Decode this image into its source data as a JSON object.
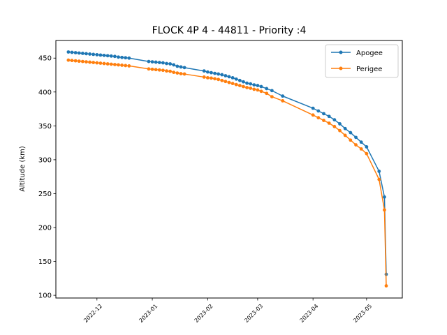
{
  "chart_data": {
    "type": "line",
    "title": "FLOCK 4P 4 - 44811 - Priority :4",
    "xlabel": "",
    "ylabel": "Altitude (km)",
    "ylim": [
      96,
      476
    ],
    "xlim": [
      "2022-11-08",
      "2023-05-21"
    ],
    "y_ticks": [
      100,
      150,
      200,
      250,
      300,
      350,
      400,
      450
    ],
    "x_ticks": [
      "2022-12",
      "2023-01",
      "2023-02",
      "2023-03",
      "2023-04",
      "2023-05"
    ],
    "grid": false,
    "legend_position": "top-right",
    "series": [
      {
        "name": "Apogee",
        "color": "#1f77b4",
        "x": [
          "2022-11-15",
          "2022-11-17",
          "2022-11-19",
          "2022-11-21",
          "2022-11-23",
          "2022-11-25",
          "2022-11-27",
          "2022-11-29",
          "2022-12-01",
          "2022-12-03",
          "2022-12-05",
          "2022-12-07",
          "2022-12-09",
          "2022-12-11",
          "2022-12-13",
          "2022-12-15",
          "2022-12-17",
          "2022-12-19",
          "2022-12-30",
          "2023-01-01",
          "2023-01-03",
          "2023-01-05",
          "2023-01-07",
          "2023-01-09",
          "2023-01-11",
          "2023-01-13",
          "2023-01-15",
          "2023-01-17",
          "2023-01-19",
          "2023-01-30",
          "2023-02-01",
          "2023-02-03",
          "2023-02-05",
          "2023-02-07",
          "2023-02-09",
          "2023-02-11",
          "2023-02-13",
          "2023-02-15",
          "2023-02-17",
          "2023-02-19",
          "2023-02-21",
          "2023-02-23",
          "2023-02-25",
          "2023-02-27",
          "2023-03-01",
          "2023-03-03",
          "2023-03-06",
          "2023-03-09",
          "2023-03-15",
          "2023-04-01",
          "2023-04-04",
          "2023-04-07",
          "2023-04-10",
          "2023-04-13",
          "2023-04-16",
          "2023-04-19",
          "2023-04-22",
          "2023-04-25",
          "2023-04-28",
          "2023-05-01",
          "2023-05-08",
          "2023-05-11",
          "2023-05-12"
        ],
        "y": [
          459,
          458.5,
          458,
          457.5,
          457,
          456.5,
          456,
          455.5,
          455,
          454.5,
          454,
          453.5,
          453,
          452.5,
          451.5,
          451,
          450.5,
          450,
          445,
          444.5,
          444,
          443.5,
          443,
          442,
          441.5,
          440,
          438,
          437,
          436,
          431,
          429.5,
          428.5,
          427.5,
          426.5,
          425.5,
          424,
          422.5,
          421,
          419,
          417,
          415,
          413,
          412,
          410.5,
          409.5,
          408,
          405,
          402,
          394,
          376,
          372,
          368,
          364,
          359,
          353,
          346,
          340,
          333,
          326,
          319,
          283,
          245,
          131
        ]
      },
      {
        "name": "Perigee",
        "color": "#ff7f0e",
        "x": [
          "2022-11-15",
          "2022-11-17",
          "2022-11-19",
          "2022-11-21",
          "2022-11-23",
          "2022-11-25",
          "2022-11-27",
          "2022-11-29",
          "2022-12-01",
          "2022-12-03",
          "2022-12-05",
          "2022-12-07",
          "2022-12-09",
          "2022-12-11",
          "2022-12-13",
          "2022-12-15",
          "2022-12-17",
          "2022-12-19",
          "2022-12-30",
          "2023-01-01",
          "2023-01-03",
          "2023-01-05",
          "2023-01-07",
          "2023-01-09",
          "2023-01-11",
          "2023-01-13",
          "2023-01-15",
          "2023-01-17",
          "2023-01-19",
          "2023-01-30",
          "2023-02-01",
          "2023-02-03",
          "2023-02-05",
          "2023-02-07",
          "2023-02-09",
          "2023-02-11",
          "2023-02-13",
          "2023-02-15",
          "2023-02-17",
          "2023-02-19",
          "2023-02-21",
          "2023-02-23",
          "2023-02-25",
          "2023-02-27",
          "2023-03-01",
          "2023-03-03",
          "2023-03-06",
          "2023-03-09",
          "2023-03-15",
          "2023-04-01",
          "2023-04-04",
          "2023-04-07",
          "2023-04-10",
          "2023-04-13",
          "2023-04-16",
          "2023-04-19",
          "2023-04-22",
          "2023-04-25",
          "2023-04-28",
          "2023-05-01",
          "2023-05-08",
          "2023-05-11",
          "2023-05-12"
        ],
        "y": [
          447,
          446.5,
          446,
          445.5,
          445,
          444.5,
          444,
          443.5,
          443,
          442.5,
          442,
          441.5,
          441,
          440.5,
          440,
          439.5,
          439,
          438.5,
          434,
          433.5,
          433,
          432.5,
          432,
          431,
          430.5,
          429,
          428,
          427,
          426.5,
          422,
          421,
          420.5,
          419.5,
          418.5,
          417,
          415.5,
          414,
          412.5,
          411,
          409.5,
          408,
          406.5,
          405.5,
          404,
          403,
          401,
          398,
          393,
          387,
          366,
          362,
          358,
          354,
          349,
          343,
          336,
          329,
          322,
          316,
          309,
          271,
          226,
          114
        ]
      }
    ]
  }
}
